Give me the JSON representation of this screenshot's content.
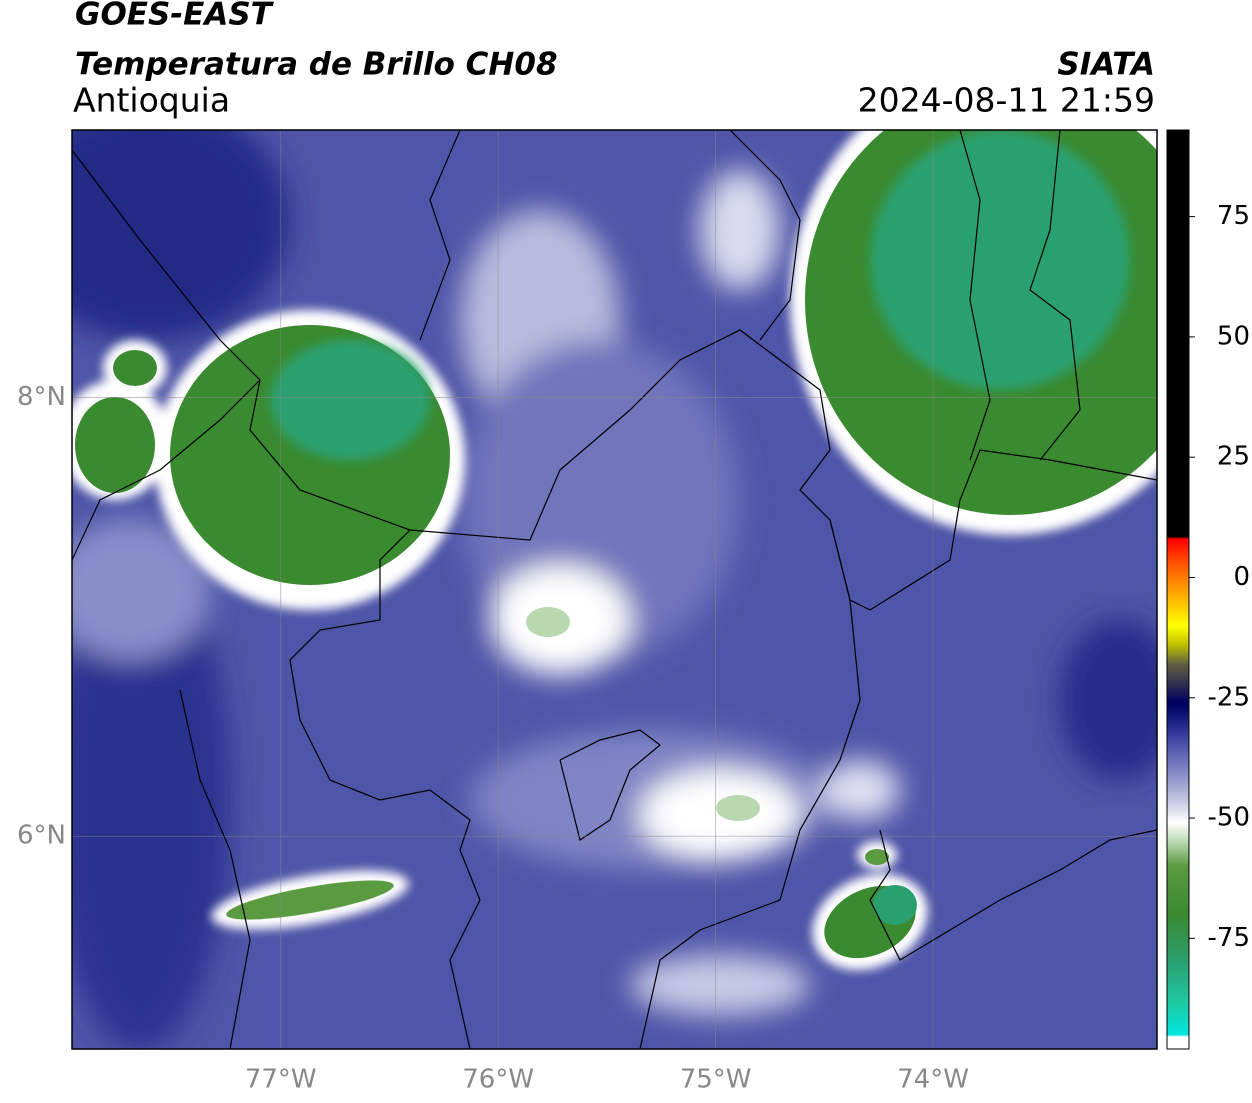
{
  "header": {
    "satellite": "GOES-EAST",
    "product": "Temperatura de Brillo CH08",
    "region": "Antioquia",
    "source": "SIATA",
    "datetime": "2024-08-11 21:59"
  },
  "map": {
    "xlim": [
      -77.96,
      -72.97
    ],
    "ylim": [
      5.03,
      9.22
    ],
    "xticks": [
      {
        "value": -77,
        "label": "77°W"
      },
      {
        "value": -76,
        "label": "76°W"
      },
      {
        "value": -75,
        "label": "75°W"
      },
      {
        "value": -74,
        "label": "74°W"
      }
    ],
    "yticks": [
      {
        "value": 6,
        "label": "6°N"
      },
      {
        "value": 8,
        "label": "8°N"
      }
    ],
    "grid": true
  },
  "colorbar": {
    "clim": [
      -98,
      93
    ],
    "ticks": [
      -75,
      -50,
      -25,
      0,
      25,
      50,
      75
    ],
    "colormap": [
      {
        "value": -98,
        "color": "#ffffff"
      },
      {
        "value": -95.5,
        "color": "#ffffff"
      },
      {
        "value": -95,
        "color": "#00e5e0"
      },
      {
        "value": -88,
        "color": "#20c8a0"
      },
      {
        "value": -80,
        "color": "#2aa070"
      },
      {
        "value": -70,
        "color": "#3a8a30"
      },
      {
        "value": -60,
        "color": "#5a9a40"
      },
      {
        "value": -55,
        "color": "#b8d8b0"
      },
      {
        "value": -51,
        "color": "#ffffff"
      },
      {
        "value": -46,
        "color": "#c0c4e0"
      },
      {
        "value": -40,
        "color": "#7f84c4"
      },
      {
        "value": -33,
        "color": "#3a40a0"
      },
      {
        "value": -29,
        "color": "#101878"
      },
      {
        "value": -26,
        "color": "#000060"
      },
      {
        "value": -22,
        "color": "#303050"
      },
      {
        "value": -18,
        "color": "#606040"
      },
      {
        "value": -14,
        "color": "#c0c000"
      },
      {
        "value": -10,
        "color": "#ffff00"
      },
      {
        "value": -4,
        "color": "#ffb000"
      },
      {
        "value": 2,
        "color": "#ff6000"
      },
      {
        "value": 8,
        "color": "#ff0000"
      },
      {
        "value": 8.5,
        "color": "#000000"
      },
      {
        "value": 93,
        "color": "#000000"
      }
    ]
  }
}
